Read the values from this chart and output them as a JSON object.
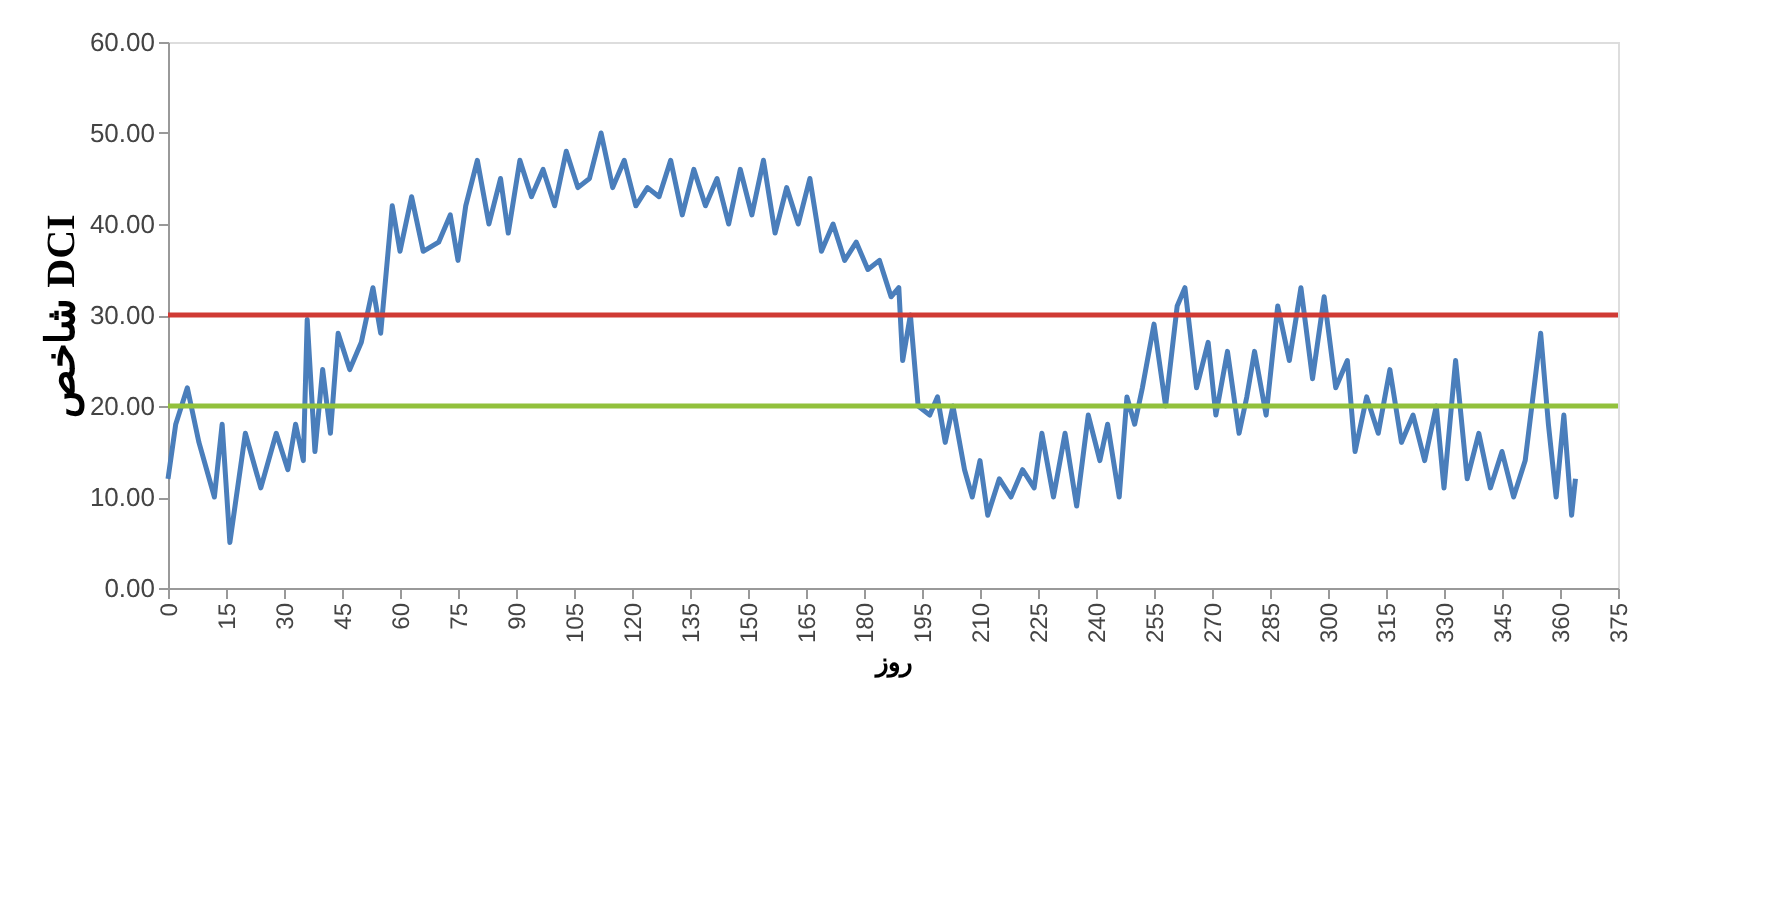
{
  "chart_data": {
    "type": "line",
    "xlabel": "روز",
    "ylabel": "شاخص DCI",
    "x": [
      0,
      2,
      5,
      8,
      12,
      14,
      16,
      20,
      24,
      28,
      31,
      33,
      35,
      36,
      38,
      40,
      42,
      44,
      47,
      50,
      53,
      55,
      58,
      60,
      63,
      66,
      70,
      73,
      75,
      77,
      80,
      83,
      86,
      88,
      91,
      94,
      97,
      100,
      103,
      106,
      109,
      112,
      115,
      118,
      121,
      124,
      127,
      130,
      133,
      136,
      139,
      142,
      145,
      148,
      151,
      154,
      157,
      160,
      163,
      166,
      169,
      172,
      175,
      178,
      181,
      184,
      187,
      189,
      190,
      192,
      194,
      197,
      199,
      201,
      203,
      206,
      208,
      210,
      212,
      215,
      218,
      221,
      224,
      226,
      229,
      232,
      235,
      238,
      241,
      243,
      246,
      248,
      250,
      252,
      255,
      258,
      261,
      263,
      266,
      269,
      271,
      274,
      277,
      279,
      281,
      284,
      287,
      290,
      293,
      296,
      299,
      302,
      305,
      307,
      310,
      313,
      316,
      319,
      322,
      325,
      328,
      330,
      333,
      336,
      339,
      342,
      345,
      348,
      351,
      355,
      357,
      359,
      361,
      363,
      364
    ],
    "series": [
      {
        "color": "#4a7ebb",
        "values": [
          12,
          18,
          22,
          16,
          10,
          18,
          5,
          17,
          11,
          17,
          13,
          18,
          14,
          29.5,
          15,
          24,
          17,
          28,
          24,
          27,
          33,
          28,
          42,
          37,
          43,
          37,
          38,
          41,
          36,
          42,
          47,
          40,
          45,
          39,
          47,
          43,
          46,
          42,
          48,
          44,
          45,
          50,
          44,
          47,
          42,
          44,
          43,
          47,
          41,
          46,
          42,
          45,
          40,
          46,
          41,
          47,
          39,
          44,
          40,
          45,
          37,
          40,
          36,
          38,
          35,
          36,
          32,
          33,
          25,
          30,
          20,
          19,
          21,
          16,
          20,
          13,
          10,
          14,
          8,
          12,
          10,
          13,
          11,
          17,
          10,
          17,
          9,
          19,
          14,
          18,
          10,
          21,
          18,
          22,
          29,
          20,
          31,
          33,
          22,
          27,
          19,
          26,
          17,
          21,
          26,
          19,
          31,
          25,
          33,
          23,
          32,
          22,
          25,
          15,
          21,
          17,
          24,
          16,
          19,
          14,
          20,
          11,
          25,
          12,
          17,
          11,
          15,
          10,
          14,
          28,
          18,
          10,
          19,
          8,
          12
        ]
      }
    ],
    "xlim": [
      0,
      375
    ],
    "xticks": [
      0,
      15,
      30,
      45,
      60,
      75,
      90,
      105,
      120,
      135,
      150,
      165,
      180,
      195,
      210,
      225,
      240,
      255,
      270,
      285,
      300,
      315,
      330,
      345,
      360,
      375
    ],
    "ylim": [
      0,
      60
    ],
    "yticks": [
      {
        "value": 0,
        "label": "0.00"
      },
      {
        "value": 10,
        "label": "10.00"
      },
      {
        "value": 20,
        "label": "20.00"
      },
      {
        "value": 30,
        "label": "30.00"
      },
      {
        "value": 40,
        "label": "40.00"
      },
      {
        "value": 50,
        "label": "50.00"
      },
      {
        "value": 60,
        "label": "60.00"
      }
    ],
    "ref_lines": [
      {
        "axis": "y",
        "value": 30,
        "color": "#d03a34"
      },
      {
        "axis": "y",
        "value": 20,
        "color": "#92c13c"
      }
    ],
    "grid": false
  }
}
